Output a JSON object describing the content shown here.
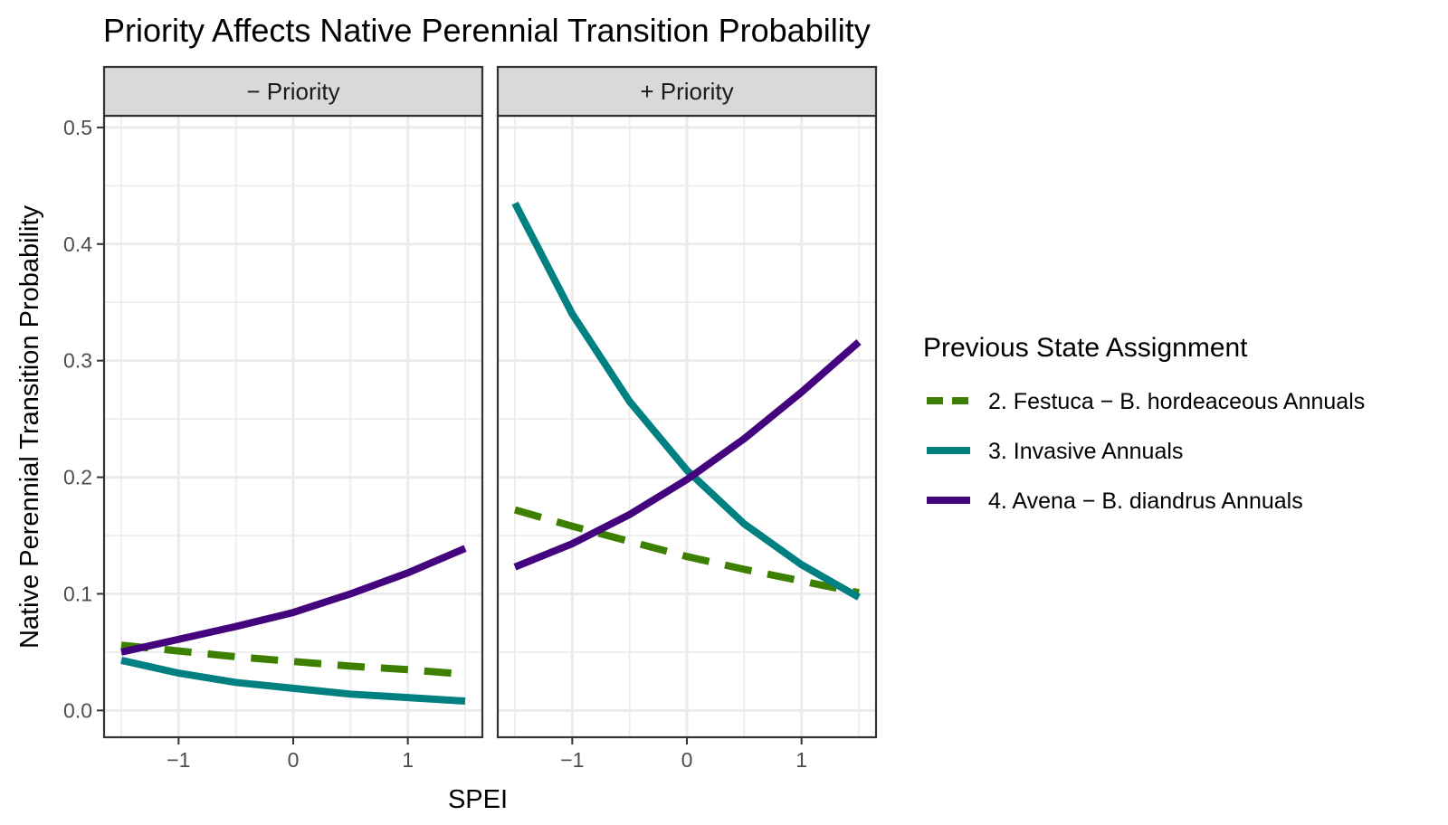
{
  "chart_data": {
    "type": "line",
    "title": "Priority Affects Native Perennial Transition Probability",
    "xlabel": "SPEI",
    "ylabel": "Native Perennial Transition Probability",
    "xlim": [
      -1.65,
      1.65
    ],
    "ylim": [
      -0.023,
      0.51
    ],
    "x_ticks": [
      -1,
      0,
      1
    ],
    "x_tick_labels": [
      "−1",
      "0",
      "1"
    ],
    "y_ticks": [
      0.0,
      0.1,
      0.2,
      0.3,
      0.4,
      0.5
    ],
    "y_tick_labels": [
      "0.0",
      "0.1",
      "0.2",
      "0.3",
      "0.4",
      "0.5"
    ],
    "grid": true,
    "legend": {
      "title": "Previous State Assignment",
      "position": "right"
    },
    "series_styles": [
      {
        "name": "2. Festuca − B. hordeaceous Annuals",
        "color": "#3d7f00",
        "dash": "dashed"
      },
      {
        "name": "3. Invasive Annuals",
        "color": "#008080",
        "dash": "solid"
      },
      {
        "name": "4. Avena − B. diandrus Annuals",
        "color": "#43047e",
        "dash": "solid"
      }
    ],
    "panels": [
      {
        "label": "− Priority",
        "x": [
          -1.5,
          -1.0,
          -0.5,
          0.0,
          0.5,
          1.0,
          1.5
        ],
        "series": [
          {
            "name": "2. Festuca − B. hordeaceous Annuals",
            "values": [
              0.056,
              0.051,
              0.046,
              0.042,
              0.038,
              0.035,
              0.031
            ]
          },
          {
            "name": "3. Invasive Annuals",
            "values": [
              0.043,
              0.032,
              0.024,
              0.019,
              0.014,
              0.011,
              0.008
            ]
          },
          {
            "name": "4. Avena − B. diandrus Annuals",
            "values": [
              0.05,
              0.061,
              0.072,
              0.084,
              0.1,
              0.118,
              0.139
            ]
          }
        ]
      },
      {
        "label": "+ Priority",
        "x": [
          -1.5,
          -1.0,
          -0.5,
          0.0,
          0.5,
          1.0,
          1.5
        ],
        "series": [
          {
            "name": "2. Festuca − B. hordeaceous Annuals",
            "values": [
              0.172,
              0.158,
              0.145,
              0.132,
              0.121,
              0.111,
              0.101
            ]
          },
          {
            "name": "3. Invasive Annuals",
            "values": [
              0.435,
              0.34,
              0.265,
              0.206,
              0.16,
              0.125,
              0.097
            ]
          },
          {
            "name": "4. Avena − B. diandrus Annuals",
            "values": [
              0.123,
              0.143,
              0.168,
              0.198,
              0.233,
              0.273,
              0.316
            ]
          }
        ]
      }
    ]
  }
}
